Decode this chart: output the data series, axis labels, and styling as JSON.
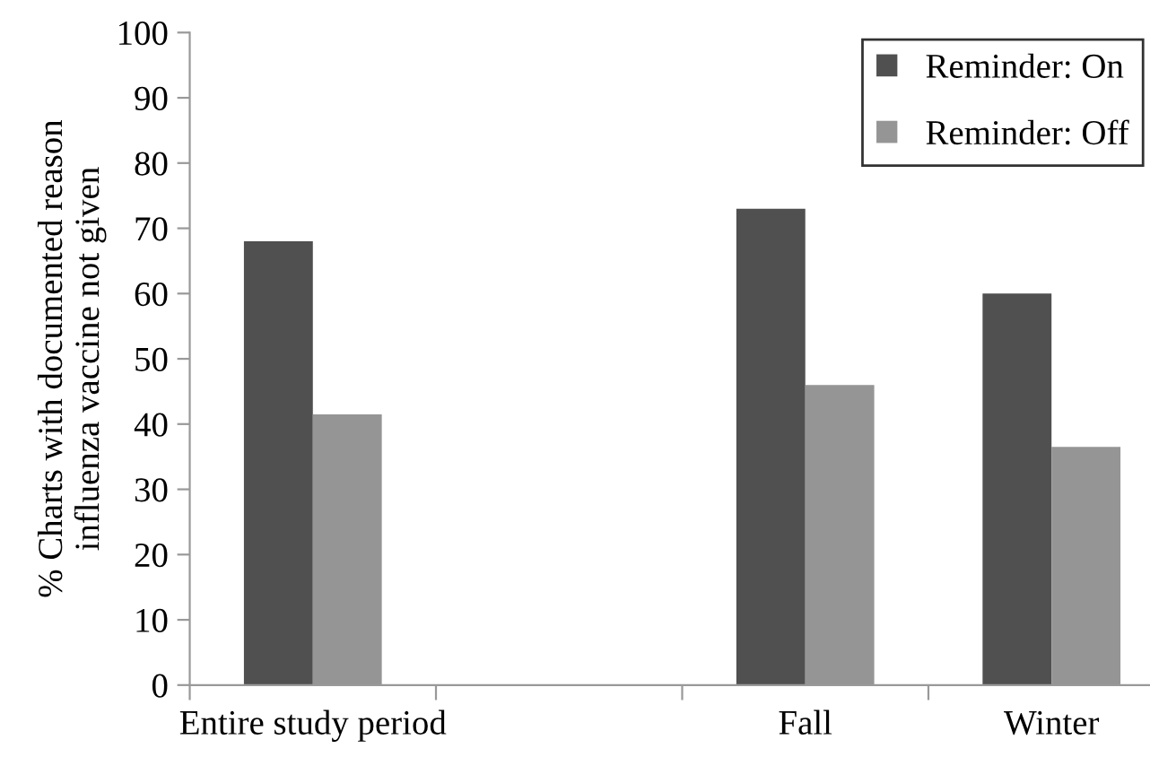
{
  "chart_data": {
    "type": "bar",
    "ylabel": "% Charts with documented reason\ninfluenza vaccine not given",
    "categories": [
      "Entire study period",
      null,
      "Fall",
      "Winter"
    ],
    "series": [
      {
        "name": "Reminder: On",
        "color": "#505050",
        "values": [
          68,
          null,
          73,
          60
        ]
      },
      {
        "name": "Reminder: Off",
        "color": "#959595",
        "values": [
          41.5,
          null,
          46,
          36.5
        ]
      }
    ],
    "ylim": [
      0,
      100
    ],
    "yticks": [
      0,
      10,
      20,
      30,
      40,
      50,
      60,
      70,
      80,
      90,
      100
    ],
    "grid": false,
    "legend": "top right"
  }
}
